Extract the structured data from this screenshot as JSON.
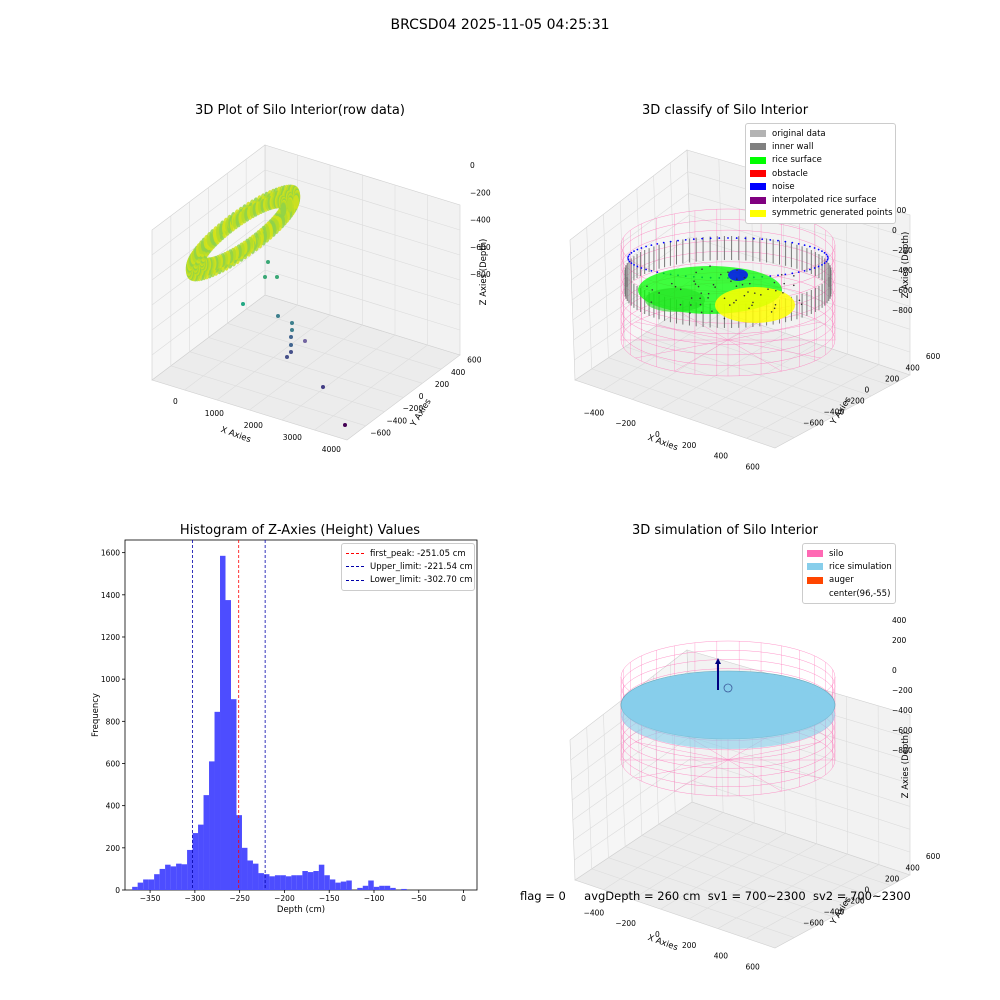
{
  "figure_title": "BRCSD04 2025-11-05 04:25:31",
  "footer": {
    "flag": "flag = 0",
    "avg_depth": "avgDepth = 260 cm",
    "sv1": "sv1 = 700~2300",
    "sv2": "sv2 = 700~2300"
  },
  "colors": {
    "original": "#b3b3b3",
    "inner_wall": "#808080",
    "rice_surface": "#00ff00",
    "obstacle": "#ff0000",
    "noise": "#0000ff",
    "interpolated": "#800080",
    "symmetric": "#ffff00",
    "silo": "#ff69b4",
    "rice_sim": "#87ceeb",
    "auger": "#ff4500",
    "hist_bar": "#4d4dff",
    "peak_line": "#ff0000",
    "limit_line": "#0000aa"
  },
  "chart_data": [
    {
      "type": "scatter",
      "title": "3D Plot of Silo Interior(row data)",
      "xlabel": "X Axies",
      "ylabel": "Y Axies",
      "zlabel": "Z Axies (Depth)",
      "x_ticks": [
        "0",
        "1000",
        "2000",
        "3000",
        "4000"
      ],
      "y_ticks": [
        "600",
        "400",
        "200",
        "0",
        "−200",
        "−400",
        "−600"
      ],
      "z_ticks": [
        "0",
        "−200",
        "−400",
        "−600",
        "−800"
      ],
      "outliers": [
        {
          "x": 1700,
          "y": 100,
          "z": -350
        },
        {
          "x": 1850,
          "y": 50,
          "z": -380
        },
        {
          "x": 2100,
          "y": 100,
          "z": -420
        },
        {
          "x": 1600,
          "y": 200,
          "z": -500
        },
        {
          "x": 2200,
          "y": 50,
          "z": -600
        },
        {
          "x": 2400,
          "y": -50,
          "z": -650
        },
        {
          "x": 2450,
          "y": -80,
          "z": -680
        },
        {
          "x": 2500,
          "y": -100,
          "z": -700
        },
        {
          "x": 2500,
          "y": -120,
          "z": -720
        },
        {
          "x": 2700,
          "y": -80,
          "z": -700
        },
        {
          "x": 3000,
          "y": -300,
          "z": -800
        },
        {
          "x": 3900,
          "y": -600,
          "z": -850
        }
      ]
    },
    {
      "type": "scatter",
      "title": "3D classify of Silo Interior",
      "xlabel": "X Axies",
      "ylabel": "Y Axies",
      "zlabel": "Z Axies (Depth)",
      "x_ticks": [
        "−400",
        "−200",
        "0",
        "200",
        "400",
        "600"
      ],
      "y_ticks": [
        "600",
        "400",
        "200",
        "0",
        "−200",
        "−400",
        "−600"
      ],
      "z_ticks": [
        "200",
        "0",
        "−200",
        "−400",
        "−600",
        "−800"
      ],
      "legend": [
        "original data",
        "inner wall",
        "rice surface",
        "obstacle",
        "noise",
        "interpolated rice surface",
        "symmetric generated points"
      ]
    },
    {
      "type": "bar",
      "title": "Histogram of Z-Axies (Height) Values",
      "xlabel": "Depth (cm)",
      "ylabel": "Frequency",
      "xlim": [
        -378,
        15
      ],
      "ylim": [
        0,
        1660
      ],
      "x_ticks": [
        -350,
        -300,
        -250,
        -200,
        -150,
        -100,
        -50,
        0
      ],
      "x_tick_labels": [
        "−350",
        "−300",
        "−250",
        "−200",
        "−150",
        "−100",
        "−50",
        "0"
      ],
      "y_ticks": [
        0,
        200,
        400,
        600,
        800,
        1000,
        1200,
        1400,
        1600
      ],
      "bin_start": -370,
      "bin_width": 6.13,
      "values": [
        15,
        35,
        50,
        50,
        75,
        100,
        120,
        112,
        125,
        122,
        190,
        270,
        310,
        450,
        610,
        845,
        1585,
        1375,
        905,
        355,
        200,
        140,
        125,
        80,
        75,
        65,
        70,
        70,
        65,
        70,
        70,
        90,
        85,
        90,
        120,
        70,
        50,
        35,
        40,
        45,
        0,
        10,
        20,
        45,
        15,
        20,
        20,
        10,
        0,
        5
      ],
      "lines": [
        {
          "label": "first_peak: -251.05 cm",
          "x": -251.05,
          "style": "peak"
        },
        {
          "label": "Upper_limit: -221.54 cm",
          "x": -221.54,
          "style": "limit"
        },
        {
          "label": "Lower_limit: -302.70 cm",
          "x": -302.7,
          "style": "limit"
        }
      ]
    },
    {
      "type": "scatter",
      "title": "3D simulation of Silo Interior",
      "xlabel": "X Axies",
      "ylabel": "Y Axies",
      "zlabel": "Z Axies (Depth)",
      "x_ticks": [
        "−400",
        "−200",
        "0",
        "200",
        "400",
        "600"
      ],
      "y_ticks": [
        "600",
        "400",
        "200",
        "0",
        "−200",
        "−400",
        "−600"
      ],
      "z_ticks": [
        "400",
        "200",
        "0",
        "−200",
        "−400",
        "−600",
        "−800"
      ],
      "legend": [
        "silo",
        "rice simulation",
        "auger",
        "center(96,-55)"
      ]
    }
  ]
}
